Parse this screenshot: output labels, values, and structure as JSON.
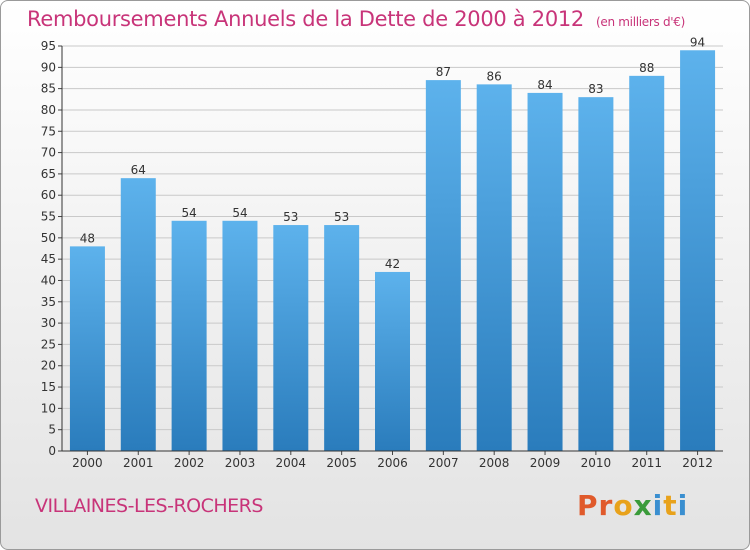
{
  "header": {
    "title": "Remboursements Annuels de la Dette de 2000 à 2012",
    "unit": "(en milliers d'€)"
  },
  "footer": {
    "place": "VILLAINES-LES-ROCHERS",
    "logo": "Proxiti"
  },
  "colors": {
    "title": "#c83479",
    "bar_top": "#5db2ec",
    "bar_bottom": "#2a7cbc",
    "grid": "#c9c9c9",
    "logo_letters": [
      "#e05a2b",
      "#e05a2b",
      "#e8a21b",
      "#3a9b3a",
      "#3a8fd0",
      "#e8a21b",
      "#3a8fd0"
    ]
  },
  "chart_data": {
    "type": "bar",
    "title": "Remboursements Annuels de la Dette de 2000 à 2012",
    "xlabel": "",
    "ylabel": "",
    "categories": [
      "2000",
      "2001",
      "2002",
      "2003",
      "2004",
      "2005",
      "2006",
      "2007",
      "2008",
      "2009",
      "2010",
      "2011",
      "2012"
    ],
    "values": [
      48,
      64,
      54,
      54,
      53,
      53,
      42,
      87,
      86,
      84,
      83,
      88,
      94
    ],
    "ylim": [
      0,
      95
    ],
    "yticks": [
      0,
      5,
      10,
      15,
      20,
      25,
      30,
      35,
      40,
      45,
      50,
      55,
      60,
      65,
      70,
      75,
      80,
      85,
      90,
      95
    ],
    "grid": true,
    "data_labels": true
  }
}
